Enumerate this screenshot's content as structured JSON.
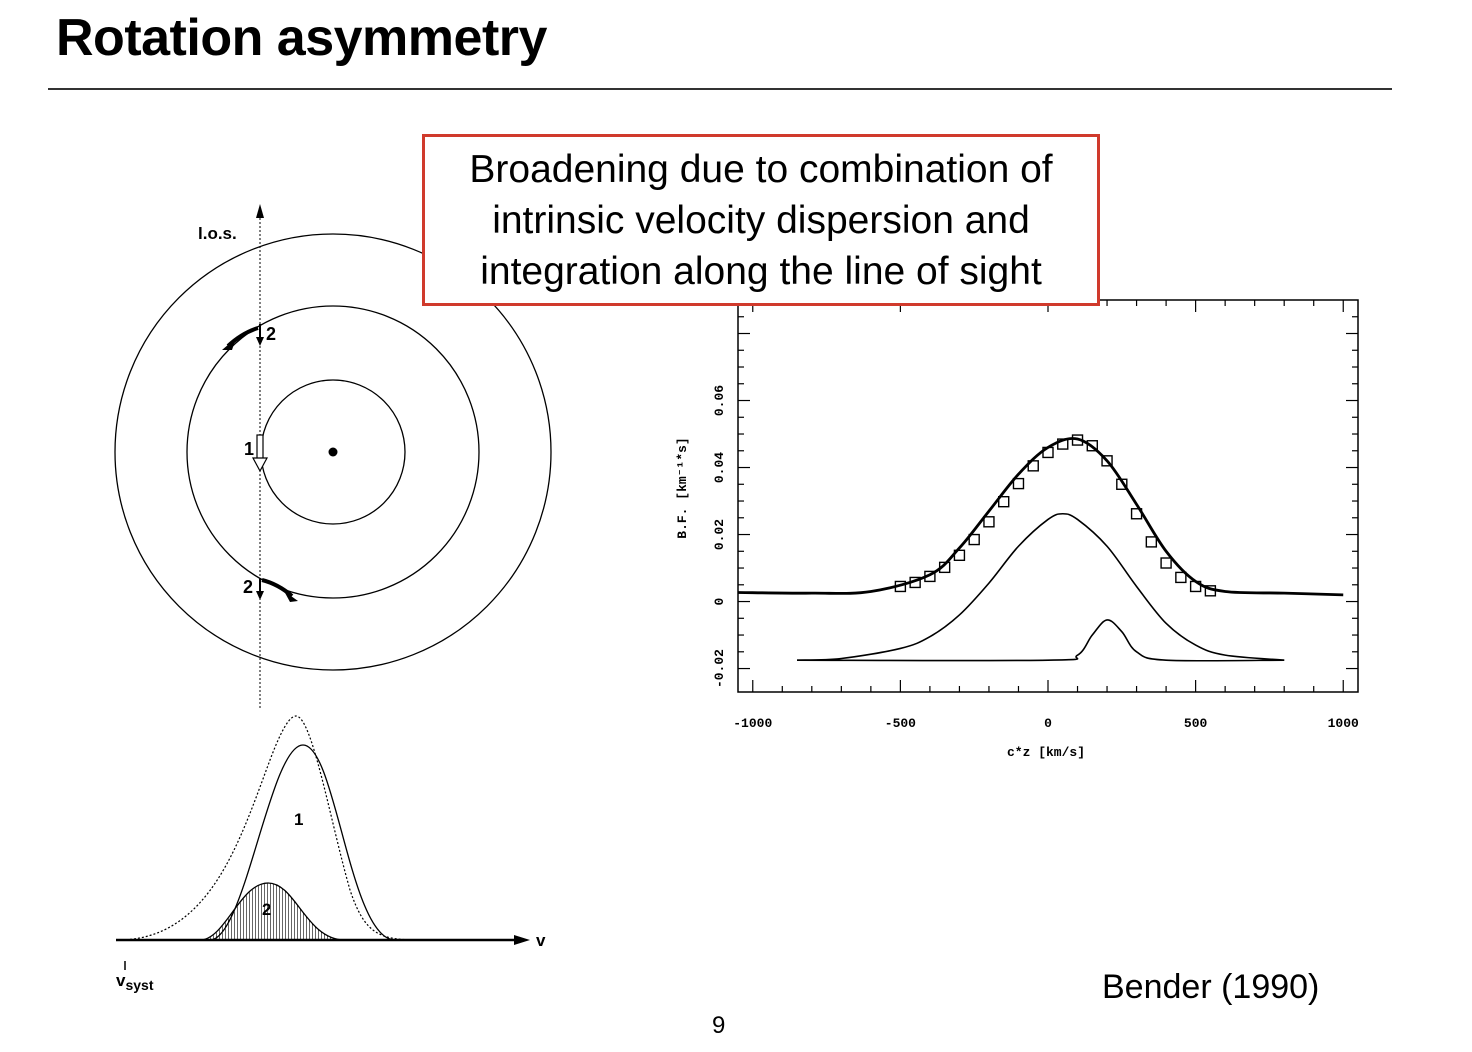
{
  "slide": {
    "title": "Rotation asymmetry",
    "callout": "Broadening due to combination of intrinsic velocity dispersion and integration along the line of sight",
    "credit": "Bender (1990)",
    "page_number": "9"
  },
  "left_figure": {
    "los_label": "l.o.s.",
    "point_label_1": "1",
    "point_label_2_top": "2",
    "point_label_2_bottom": "2",
    "profile_label_1": "1",
    "profile_label_2": "2",
    "v_axis_label": "v",
    "vsyst_main": "v",
    "vsyst_sub": "syst"
  },
  "right_figure": {
    "xlabel": "c*z  [km/s]",
    "ylabel": "B.F.  [km⁻¹*s]"
  },
  "chart_data": {
    "type": "line",
    "xlabel": "c*z  [km/s]",
    "ylabel": "B.F.  [km⁻¹*s]",
    "xlim": [
      -1050,
      1050
    ],
    "ylim": [
      -0.027,
      0.09
    ],
    "x_ticks": [
      -1000,
      -500,
      0,
      500,
      1000
    ],
    "x_tick_labels": [
      "-1000",
      "-500",
      "0",
      "500",
      "1000"
    ],
    "y_ticks": [
      -0.02,
      0,
      0.02,
      0.04,
      0.06
    ],
    "y_tick_labels": [
      "-0.02",
      "0",
      "0.02",
      "0.04",
      "0.06"
    ],
    "series": [
      {
        "style": "total fit (thick line)",
        "x": [
          -1050,
          -800,
          -600,
          -400,
          -300,
          -200,
          -100,
          0,
          100,
          200,
          300,
          400,
          500,
          600,
          800,
          1000
        ],
        "y": [
          0.0027,
          0.0025,
          0.003,
          0.008,
          0.016,
          0.027,
          0.038,
          0.046,
          0.0485,
          0.042,
          0.029,
          0.015,
          0.006,
          0.003,
          0.0025,
          0.002
        ]
      },
      {
        "style": "main component",
        "x": [
          -850,
          -700,
          -500,
          -400,
          -300,
          -200,
          -100,
          0,
          50,
          100,
          200,
          300,
          400,
          500,
          600,
          800
        ],
        "y": [
          -0.0175,
          -0.017,
          -0.014,
          -0.0105,
          -0.004,
          0.0055,
          0.0165,
          0.0245,
          0.0262,
          0.0245,
          0.0165,
          0.0045,
          -0.0065,
          -0.013,
          -0.016,
          -0.0175
        ]
      },
      {
        "style": "secondary component",
        "x": [
          -850,
          0,
          100,
          150,
          200,
          250,
          300,
          400,
          800
        ],
        "y": [
          -0.0175,
          -0.0175,
          -0.016,
          -0.01,
          -0.0055,
          -0.009,
          -0.015,
          -0.0175,
          -0.0175
        ]
      },
      {
        "style": "observed (open squares)",
        "x": [
          -500,
          -450,
          -400,
          -350,
          -300,
          -250,
          -200,
          -150,
          -100,
          -50,
          0,
          50,
          100,
          150,
          200,
          250,
          300,
          350,
          400,
          450,
          500,
          550
        ],
        "y": [
          0.0045,
          0.0057,
          0.0075,
          0.0102,
          0.0138,
          0.0185,
          0.0238,
          0.0298,
          0.0352,
          0.0405,
          0.0445,
          0.047,
          0.0482,
          0.0465,
          0.042,
          0.035,
          0.0262,
          0.0178,
          0.0115,
          0.0072,
          0.0045,
          0.0032
        ]
      }
    ]
  }
}
